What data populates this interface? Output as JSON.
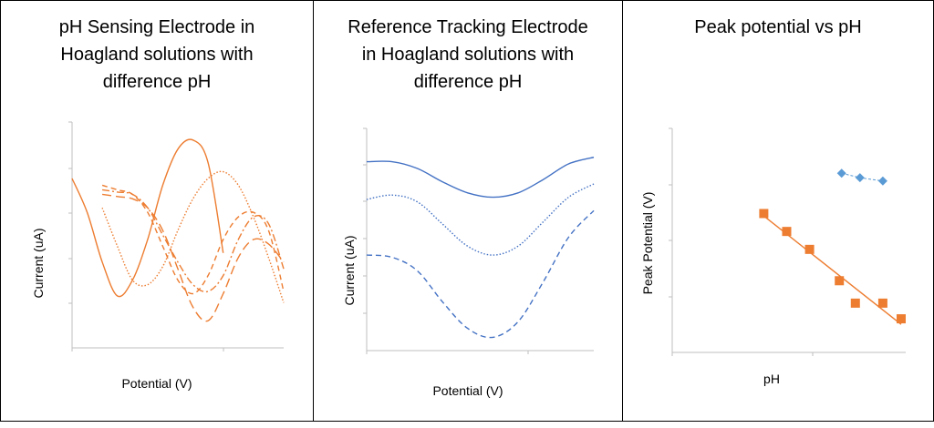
{
  "chart_data": [
    {
      "type": "line",
      "title": "pH Sensing Electrode in\nHoagland solutions with\ndifference pH",
      "xlabel": "Potential (V)",
      "ylabel": "Current (uA)",
      "grid": false,
      "legend": "none",
      "color": "#ED7D31",
      "series": [
        {
          "dash": "solid",
          "points": [
            [
              0,
              75
            ],
            [
              1,
              60
            ],
            [
              2,
              38
            ],
            [
              3,
              23
            ],
            [
              4,
              30
            ],
            [
              5,
              48
            ],
            [
              6,
              72
            ],
            [
              7,
              88
            ],
            [
              8,
              92
            ],
            [
              9,
              82
            ],
            [
              10,
              42
            ]
          ]
        },
        {
          "dash": "dotted",
          "points": [
            [
              2,
              62
            ],
            [
              3,
              45
            ],
            [
              4,
              30
            ],
            [
              5,
              28
            ],
            [
              6,
              36
            ],
            [
              7,
              52
            ],
            [
              8,
              66
            ],
            [
              9,
              75
            ],
            [
              10,
              78
            ],
            [
              11,
              72
            ],
            [
              12,
              58
            ],
            [
              13,
              40
            ],
            [
              14,
              20
            ]
          ]
        },
        {
          "dash": "dashed",
          "points": [
            [
              2,
              72
            ],
            [
              3,
              70
            ],
            [
              4,
              68
            ],
            [
              5,
              60
            ],
            [
              6,
              45
            ],
            [
              7,
              30
            ],
            [
              8,
              24
            ],
            [
              9,
              32
            ],
            [
              10,
              48
            ],
            [
              11,
              58
            ],
            [
              12,
              60
            ],
            [
              13,
              52
            ],
            [
              14,
              25
            ]
          ]
        },
        {
          "dash": "dashdot",
          "points": [
            [
              2,
              70
            ],
            [
              3,
              69
            ],
            [
              4,
              68
            ],
            [
              5,
              62
            ],
            [
              6,
              50
            ],
            [
              7,
              38
            ],
            [
              8,
              28
            ],
            [
              9,
              25
            ],
            [
              10,
              32
            ],
            [
              11,
              48
            ],
            [
              12,
              58
            ],
            [
              13,
              55
            ],
            [
              14,
              35
            ]
          ]
        },
        {
          "dash": "longdash",
          "points": [
            [
              2,
              68
            ],
            [
              3,
              67
            ],
            [
              4,
              66
            ],
            [
              5,
              62
            ],
            [
              6,
              52
            ],
            [
              7,
              35
            ],
            [
              8,
              18
            ],
            [
              9,
              12
            ],
            [
              10,
              24
            ],
            [
              11,
              40
            ],
            [
              12,
              48
            ],
            [
              13,
              46
            ],
            [
              14,
              38
            ]
          ]
        }
      ]
    },
    {
      "type": "line",
      "title": "Reference Tracking Electrode\nin Hoagland solutions with\ndifference pH",
      "xlabel": "Potential (V)",
      "ylabel": "Current (uA)",
      "grid": false,
      "legend": "none",
      "color": "#4472C4",
      "series": [
        {
          "dash": "solid",
          "points": [
            [
              0,
              85
            ],
            [
              1,
              85
            ],
            [
              2,
              82
            ],
            [
              3,
              76
            ],
            [
              4,
              71
            ],
            [
              5,
              69
            ],
            [
              6,
              71
            ],
            [
              7,
              77
            ],
            [
              8,
              84
            ],
            [
              9,
              87
            ]
          ]
        },
        {
          "dash": "dotted",
          "points": [
            [
              0,
              68
            ],
            [
              1,
              70
            ],
            [
              2,
              67
            ],
            [
              3,
              57
            ],
            [
              4,
              47
            ],
            [
              5,
              43
            ],
            [
              6,
              47
            ],
            [
              7,
              58
            ],
            [
              8,
              69
            ],
            [
              9,
              75
            ]
          ]
        },
        {
          "dash": "dashed",
          "points": [
            [
              0,
              43
            ],
            [
              1,
              42
            ],
            [
              2,
              36
            ],
            [
              3,
              22
            ],
            [
              4,
              10
            ],
            [
              5,
              6
            ],
            [
              6,
              13
            ],
            [
              7,
              31
            ],
            [
              8,
              51
            ],
            [
              9,
              63
            ]
          ]
        }
      ]
    },
    {
      "type": "scatter",
      "title": "Peak potential vs pH",
      "xlabel": "pH",
      "ylabel": "Peak Potential (V)",
      "grid": false,
      "legend": "none",
      "series": [
        {
          "marker": "diamond",
          "color": "#5B9BD5",
          "line": "dashed",
          "points": [
            [
              7.4,
              80
            ],
            [
              8.2,
              78
            ],
            [
              9.2,
              76.5
            ]
          ]
        },
        {
          "marker": "square",
          "color": "#ED7D31",
          "line": "trendline",
          "points": [
            [
              4,
              62
            ],
            [
              5,
              54
            ],
            [
              6,
              46
            ],
            [
              7.3,
              32
            ],
            [
              8,
              22
            ],
            [
              9.2,
              22
            ],
            [
              10,
              15
            ]
          ]
        }
      ]
    }
  ]
}
